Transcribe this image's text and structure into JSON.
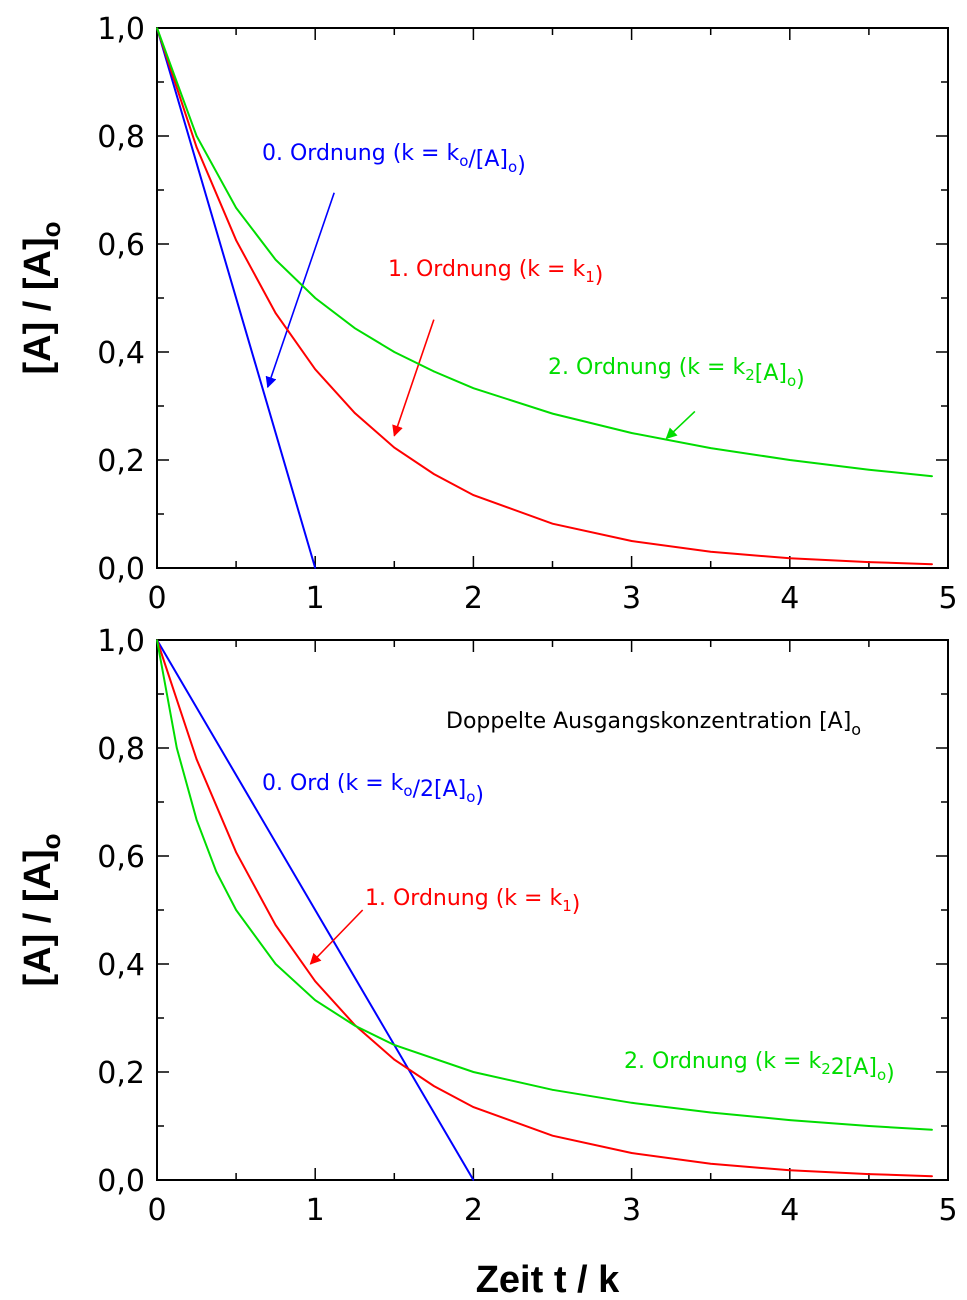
{
  "chart_data": [
    {
      "type": "line",
      "ylabel": "[A] / [A]o",
      "xlim": [
        0,
        5
      ],
      "ylim": [
        0,
        1
      ],
      "x_ticks": [
        "0",
        "1",
        "2",
        "3",
        "4",
        "5"
      ],
      "y_ticks": [
        "0,0",
        "0,2",
        "0,4",
        "0,6",
        "0,8",
        "1,0"
      ],
      "note": "",
      "series": [
        {
          "color": "#0000ff",
          "x": [
            0,
            1
          ],
          "y": [
            1.0,
            0.0
          ],
          "label_text": "0. Ordnung  (k = k",
          "label_sub1": "o",
          "label_mid": "/[A]",
          "label_sub2": "o",
          "label_end": ")",
          "arrow_from": [
            1.12,
            0.695
          ],
          "arrow_to": [
            0.7,
            0.335
          ]
        },
        {
          "color": "#ff0000",
          "x": [
            0,
            0.25,
            0.5,
            0.75,
            1.0,
            1.25,
            1.5,
            1.75,
            2.0,
            2.5,
            3.0,
            3.5,
            4.0,
            4.5,
            4.9
          ],
          "y": [
            1.0,
            0.779,
            0.607,
            0.472,
            0.368,
            0.287,
            0.223,
            0.174,
            0.135,
            0.082,
            0.05,
            0.03,
            0.018,
            0.011,
            0.007
          ],
          "label_text": "1. Ordnung  (k = k",
          "label_sub1": "1",
          "label_mid": "",
          "label_sub2": "",
          "label_end": ")",
          "arrow_from": [
            1.75,
            0.46
          ],
          "arrow_to": [
            1.5,
            0.245
          ]
        },
        {
          "color": "#00dd00",
          "x": [
            0,
            0.25,
            0.5,
            0.75,
            1.0,
            1.25,
            1.5,
            1.75,
            2.0,
            2.5,
            3.0,
            3.5,
            4.0,
            4.5,
            4.9
          ],
          "y": [
            1.0,
            0.8,
            0.667,
            0.571,
            0.5,
            0.444,
            0.4,
            0.364,
            0.333,
            0.286,
            0.25,
            0.222,
            0.2,
            0.182,
            0.17
          ],
          "label_text": "2. Ordnung  (k = k",
          "label_sub1": "2",
          "label_mid": "[A]",
          "label_sub2": "o",
          "label_end": ")",
          "arrow_from": [
            3.4,
            0.29
          ],
          "arrow_to": [
            3.22,
            0.24
          ]
        }
      ]
    },
    {
      "type": "line",
      "xlabel": "Zeit  t / k",
      "ylabel": "[A] / [A]o",
      "xlim": [
        0,
        5
      ],
      "ylim": [
        0,
        1
      ],
      "x_ticks": [
        "0",
        "1",
        "2",
        "3",
        "4",
        "5"
      ],
      "y_ticks": [
        "0,0",
        "0,2",
        "0,4",
        "0,6",
        "0,8",
        "1,0"
      ],
      "note": "Doppelte Ausgangskonzentration [A]",
      "note_sub": "o",
      "series": [
        {
          "color": "#0000ff",
          "x": [
            0,
            2
          ],
          "y": [
            1.0,
            0.0
          ],
          "label_text": "0. Ord  (k = k",
          "label_sub1": "o",
          "label_mid": "/2[A]",
          "label_sub2": "o",
          "label_end": ")",
          "arrow_from": null,
          "arrow_to": null
        },
        {
          "color": "#ff0000",
          "x": [
            0,
            0.25,
            0.5,
            0.75,
            1.0,
            1.25,
            1.5,
            1.75,
            2.0,
            2.5,
            3.0,
            3.5,
            4.0,
            4.5,
            4.9
          ],
          "y": [
            1.0,
            0.779,
            0.607,
            0.472,
            0.368,
            0.287,
            0.223,
            0.174,
            0.135,
            0.082,
            0.05,
            0.03,
            0.018,
            0.011,
            0.007
          ],
          "label_text": "1. Ordnung  (k = k",
          "label_sub1": "1",
          "label_mid": "",
          "label_sub2": "",
          "label_end": ")",
          "arrow_from": [
            1.3,
            0.5
          ],
          "arrow_to": [
            0.97,
            0.4
          ]
        },
        {
          "color": "#00dd00",
          "x": [
            0,
            0.125,
            0.25,
            0.375,
            0.5,
            0.75,
            1.0,
            1.25,
            1.5,
            2.0,
            2.5,
            3.0,
            3.5,
            4.0,
            4.5,
            4.9
          ],
          "y": [
            1.0,
            0.8,
            0.667,
            0.571,
            0.5,
            0.4,
            0.333,
            0.286,
            0.25,
            0.2,
            0.167,
            0.143,
            0.125,
            0.111,
            0.1,
            0.093
          ],
          "label_text": "2. Ordnung  (k = k",
          "label_sub1": "2",
          "label_mid": "2[A]",
          "label_sub2": "o",
          "label_end": ")",
          "arrow_from": null,
          "arrow_to": null
        }
      ]
    }
  ]
}
